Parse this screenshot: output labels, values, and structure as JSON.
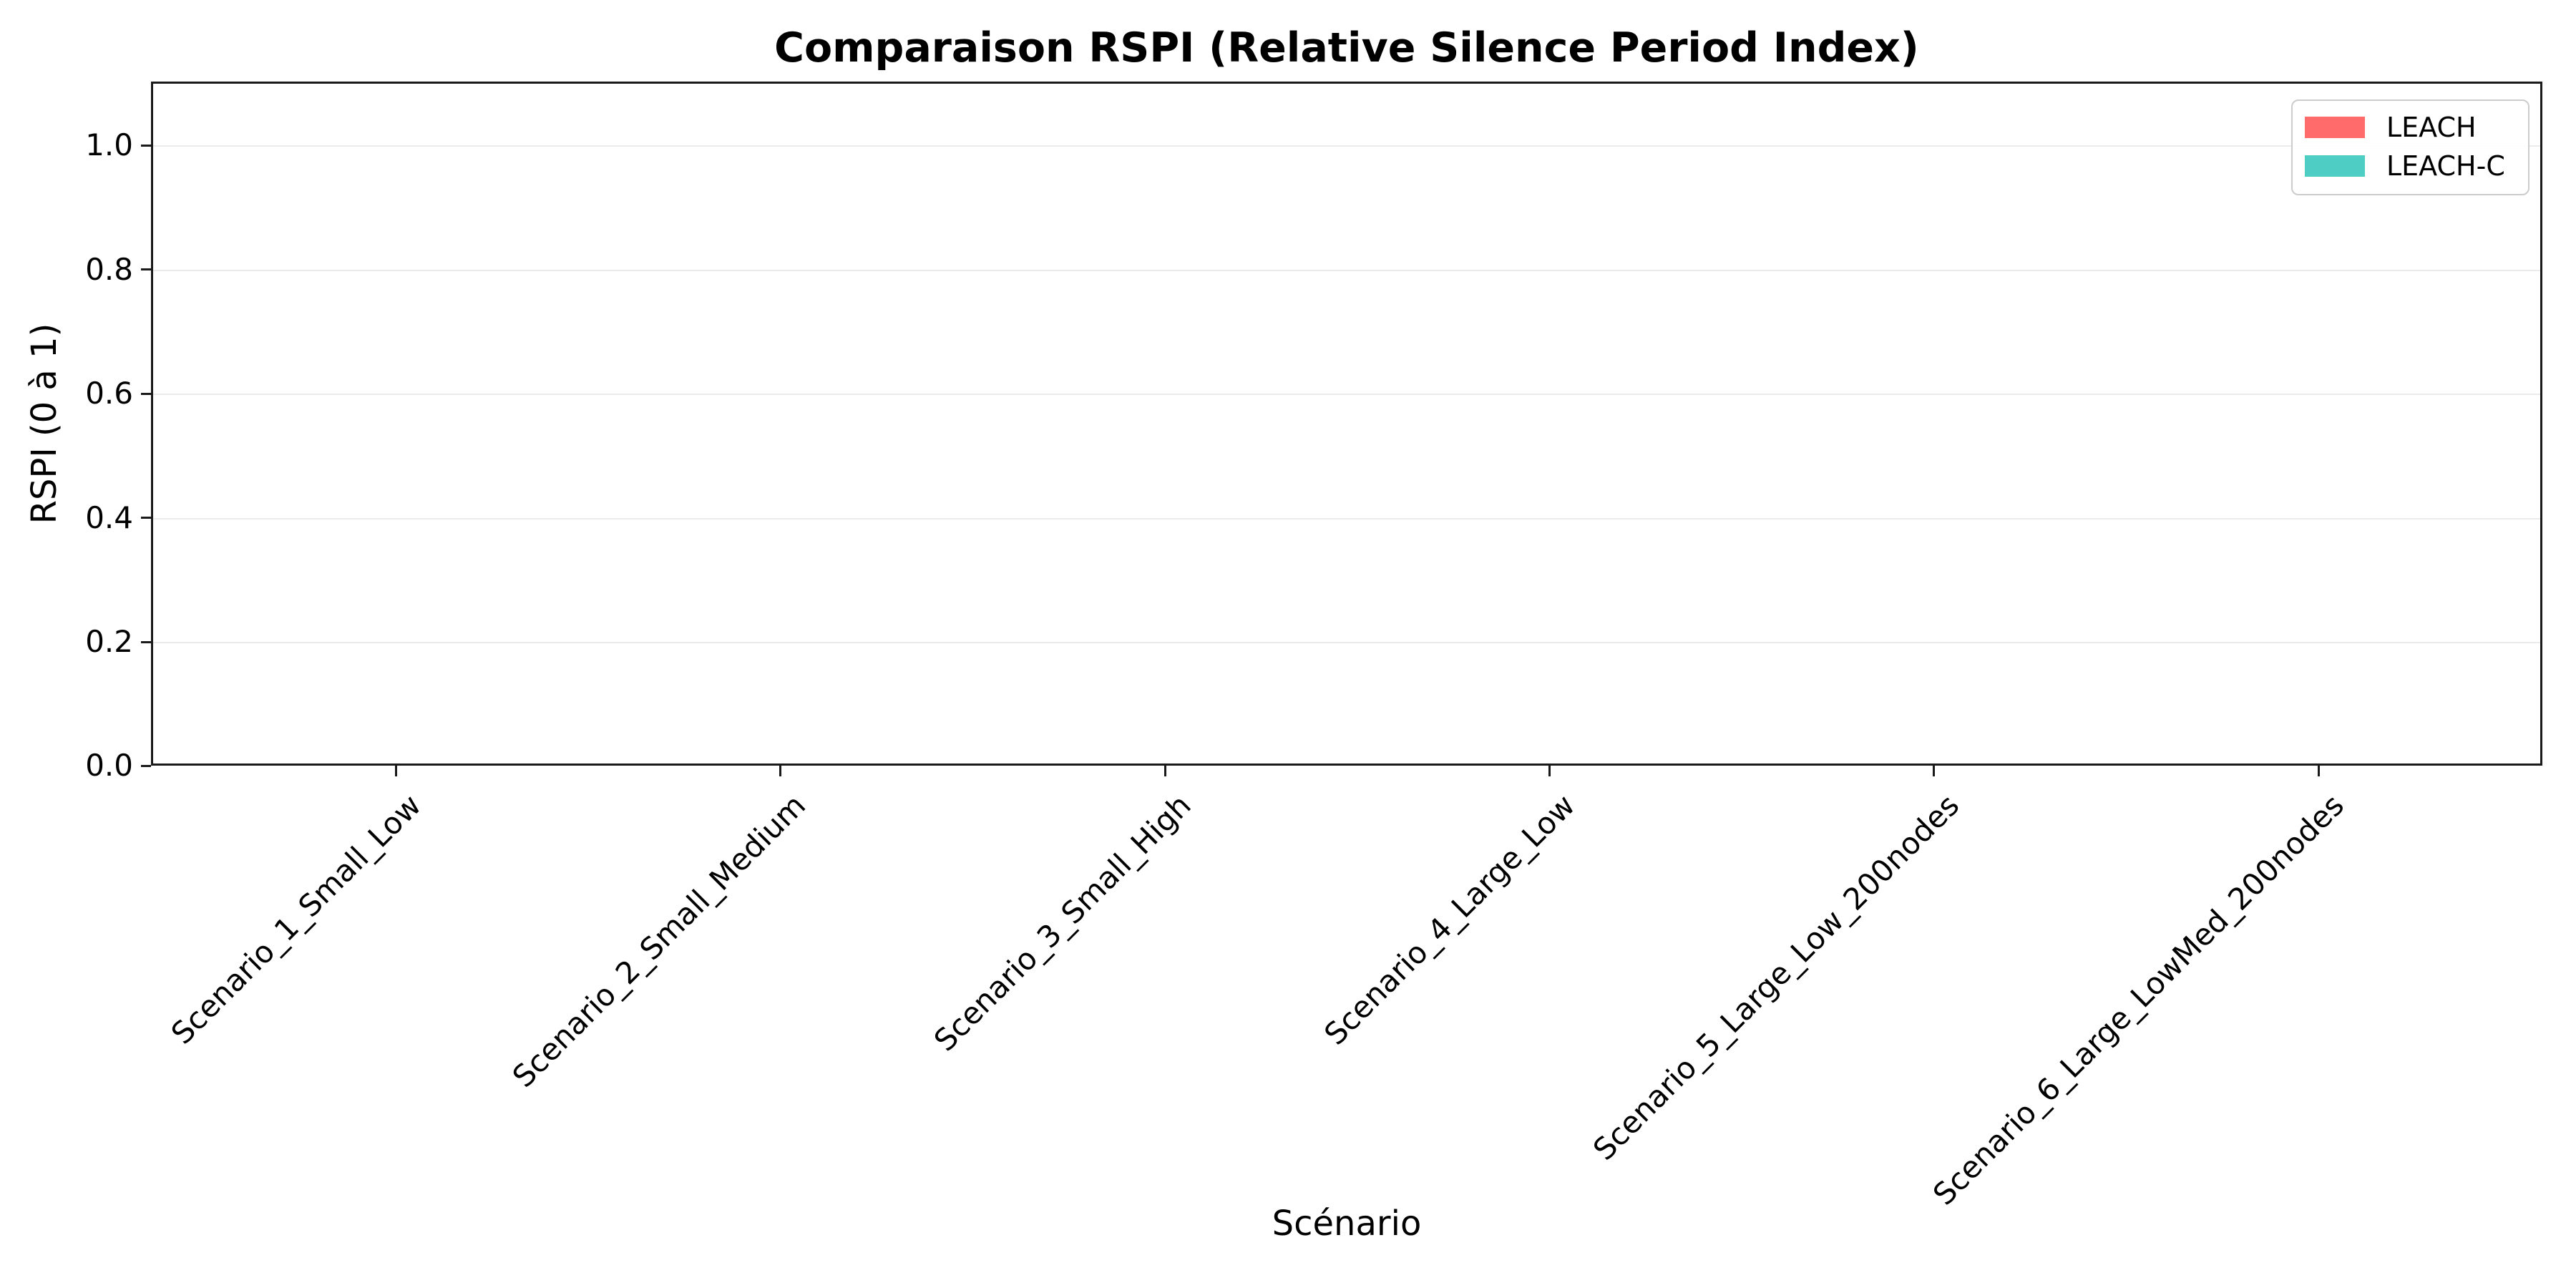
{
  "chart_data": {
    "type": "bar",
    "title": "Comparaison RSPI (Relative Silence Period Index)",
    "xlabel": "Scénario",
    "ylabel": "RSPI (0 à 1)",
    "categories": [
      "Scenario_1_Small_Low",
      "Scenario_2_Small_Medium",
      "Scenario_3_Small_High",
      "Scenario_4_Large_Low",
      "Scenario_5_Large_Low_200nodes",
      "Scenario_6_Large_LowMed_200nodes"
    ],
    "series": [
      {
        "name": "LEACH",
        "color": "#FF6B6B",
        "values": [
          0,
          0,
          0,
          0,
          0,
          0
        ]
      },
      {
        "name": "LEACH-C",
        "color": "#4ECDC4",
        "values": [
          0,
          0,
          0,
          0,
          0,
          0
        ]
      }
    ],
    "ylim": [
      0,
      1.1
    ],
    "yticks": [
      "0.0",
      "0.2",
      "0.4",
      "0.6",
      "0.8",
      "1.0"
    ],
    "grid": "horizontal-only",
    "grid_color": "#ebebeb",
    "legend_position": "upper-right",
    "tick_label_rotation_deg": 45
  }
}
